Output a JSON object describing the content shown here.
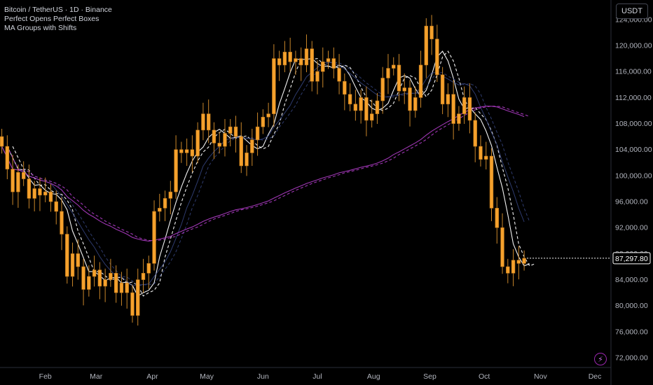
{
  "header": {
    "symbol_line": "Bitcoin / TetherUS · 1D · Binance",
    "indicators": [
      "Perfect Opens Perfect Boxes",
      "MA Groups with Shifts"
    ],
    "currency_button": "USDT"
  },
  "colors": {
    "background": "#000000",
    "candle": "#f5a12d",
    "candle_wick": "#c9862a",
    "ma_white": "#ffffff",
    "ma_blue": "#3a4a8a",
    "ma_purple": "#b03cc8",
    "price_label_border": "#ffffff",
    "grid_text": "#b2b5be"
  },
  "icons": {
    "assistant": "lightning-icon"
  },
  "chart_data": {
    "type": "candlestick",
    "current_price_label": "87,297.80",
    "current_price": 87297.8,
    "ylim": [
      70500,
      127000
    ],
    "y_ticks": [
      72000,
      76000,
      80000,
      84000,
      88000,
      92000,
      96000,
      100000,
      104000,
      108000,
      112000,
      116000,
      120000,
      124000
    ],
    "y_tick_labels": [
      "72,000.00",
      "76,000.00",
      "80,000.00",
      "84,000.00",
      "88,000.00",
      "92,000.00",
      "96,000.00",
      "100,000.00",
      "104,000.00",
      "108,000.00",
      "112,000.00",
      "116,000.00",
      "120,000.00",
      "124,000.00"
    ],
    "x_labels": [
      {
        "label": "Feb",
        "day": 31
      },
      {
        "label": "Mar",
        "day": 59
      },
      {
        "label": "Apr",
        "day": 90
      },
      {
        "label": "May",
        "day": 120
      },
      {
        "label": "Jun",
        "day": 151
      },
      {
        "label": "Jul",
        "day": 181
      },
      {
        "label": "Aug",
        "day": 212
      },
      {
        "label": "Sep",
        "day": 243
      },
      {
        "label": "Oct",
        "day": 273
      },
      {
        "label": "Nov",
        "day": 304
      },
      {
        "label": "Dec",
        "day": 334
      }
    ],
    "x_range_days": [
      6,
      339
    ],
    "candle_step_days": 3,
    "closes": [
      104500,
      101000,
      97500,
      100500,
      99500,
      96500,
      98000,
      97000,
      97500,
      96000,
      94500,
      91000,
      84500,
      88000,
      86000,
      82500,
      84500,
      85500,
      83000,
      84000,
      85000,
      82000,
      83500,
      82000,
      78500,
      84000,
      85000,
      86500,
      94500,
      95000,
      96500,
      97500,
      104000,
      103500,
      104000,
      103000,
      107000,
      109500,
      107000,
      105000,
      104500,
      106500,
      107500,
      106000,
      101500,
      103500,
      105500,
      107500,
      109000,
      109500,
      118000,
      117000,
      119000,
      117500,
      118000,
      117000,
      119500,
      114500,
      116000,
      117500,
      118000,
      116500,
      114500,
      112500,
      111000,
      110000,
      112000,
      108500,
      109500,
      111500,
      115000,
      116500,
      117000,
      113000,
      113500,
      110000,
      112000,
      117000,
      123000,
      121000,
      115500,
      111000,
      112500,
      108000,
      109500,
      112000,
      108500,
      104500,
      102500,
      103000,
      95000,
      92000,
      86000,
      85000,
      87000,
      86500,
      87297.8
    ],
    "series": [
      {
        "name": "",
        "color": "#ffffff",
        "style": "solid"
      },
      {
        "name": "",
        "color": "#ffffff",
        "style": "dashed"
      },
      {
        "name": "",
        "color": "#3a4a8a",
        "style": "solid"
      },
      {
        "name": "",
        "color": "#3a4a8a",
        "style": "dashed"
      },
      {
        "name": "",
        "color": "#b03cc8",
        "style": "solid"
      },
      {
        "name": "",
        "color": "#b03cc8",
        "style": "dashed"
      }
    ],
    "grid": false
  }
}
